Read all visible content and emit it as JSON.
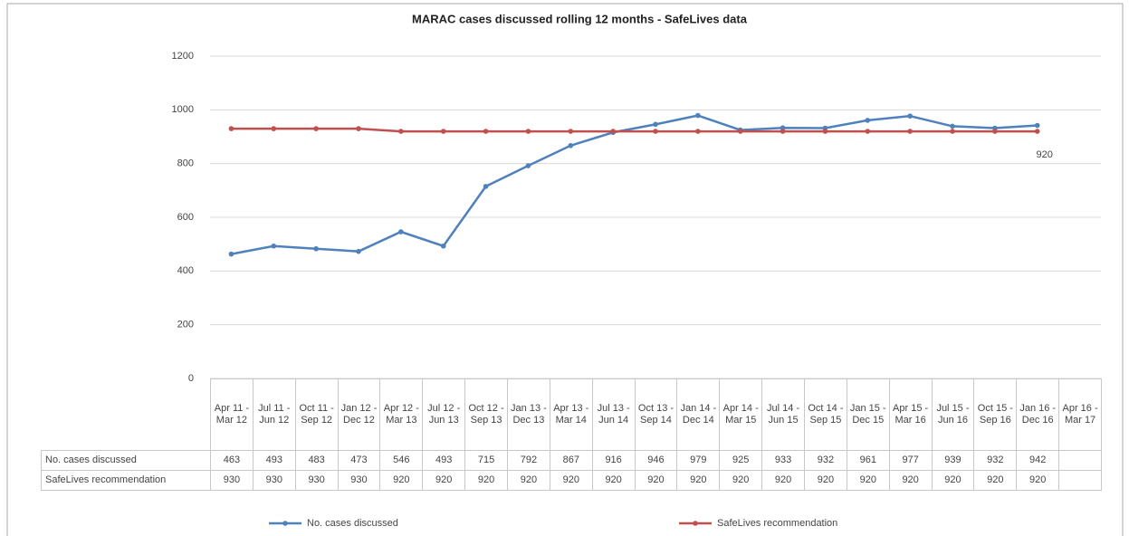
{
  "chart_data": {
    "type": "line",
    "title": "MARAC cases discussed rolling 12 months - SafeLives data",
    "categories": [
      "Apr 11 - Mar 12",
      "Jul 11 - Jun 12",
      "Oct 11 - Sep 12",
      "Jan 12 - Dec 12",
      "Apr 12 - Mar 13",
      "Jul 12 - Jun 13",
      "Oct 12 - Sep 13",
      "Jan 13 - Dec 13",
      "Apr 13 - Mar 14",
      "Jul 13 - Jun 14",
      "Oct 13 - Sep 14",
      "Jan 14 - Dec 14",
      "Apr 14 - Mar 15",
      "Jul 14 - Jun 15",
      "Oct 14 - Sep 15",
      "Jan 15 - Dec 15",
      "Apr 15 - Mar 16",
      "Jul 15 - Jun 16",
      "Oct 15 - Sep 16",
      "Jan 16 - Dec 16",
      "Apr 16 - Mar 17"
    ],
    "series": [
      {
        "name": "No. cases discussed",
        "color": "#4f81bd",
        "values": [
          463,
          493,
          483,
          473,
          546,
          493,
          715,
          792,
          867,
          916,
          946,
          979,
          925,
          933,
          932,
          961,
          977,
          939,
          932,
          942,
          null
        ]
      },
      {
        "name": "SafeLives recommendation",
        "color": "#c0504d",
        "values": [
          930,
          930,
          930,
          930,
          920,
          920,
          920,
          920,
          920,
          920,
          920,
          920,
          920,
          920,
          920,
          920,
          920,
          920,
          920,
          920,
          null
        ]
      }
    ],
    "annotation": "920",
    "ylim": [
      0,
      1200
    ],
    "yticks": [
      0,
      200,
      400,
      600,
      800,
      1000,
      1200
    ],
    "grid": true,
    "legend": "bottom",
    "data_table": true
  }
}
